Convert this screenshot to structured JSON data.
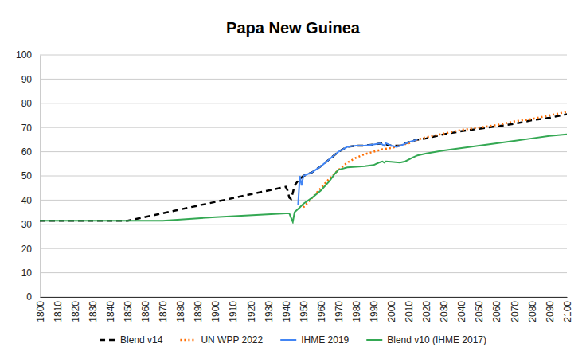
{
  "chart_data": {
    "type": "line",
    "title": "Papa New Guinea",
    "xlim": [
      1800,
      2100
    ],
    "xticks": [
      1800,
      1810,
      1820,
      1830,
      1840,
      1850,
      1860,
      1870,
      1880,
      1890,
      1900,
      1910,
      1920,
      1930,
      1940,
      1950,
      1960,
      1970,
      1980,
      1990,
      2000,
      2010,
      2020,
      2030,
      2040,
      2050,
      2060,
      2070,
      2080,
      2090,
      2100
    ],
    "ylim": [
      0,
      100
    ],
    "yticks": [
      0,
      10,
      20,
      30,
      40,
      50,
      60,
      70,
      80,
      90,
      100
    ],
    "grid": true,
    "legend": "bottom",
    "series": [
      {
        "name": "Blend v14",
        "color": "#000000",
        "line_style": "dashed",
        "x": [
          1800,
          1850,
          1940,
          1941,
          1942,
          1943,
          1944,
          1945,
          1947,
          1950,
          1955,
          1960,
          1965,
          1970,
          1975,
          1980,
          1985,
          1990,
          1995,
          2000,
          2005,
          2010,
          2015,
          2020,
          2030,
          2040,
          2050,
          2060,
          2070,
          2080,
          2090,
          2100
        ],
        "values": [
          31.5,
          31.5,
          45.5,
          44,
          41,
          40.5,
          43,
          46,
          48,
          50,
          51.5,
          54,
          57,
          60,
          62,
          62.5,
          62.5,
          63,
          63.5,
          62.5,
          62.5,
          64,
          65,
          65.5,
          67.2,
          68.5,
          69.5,
          70.5,
          71.5,
          73,
          74,
          75.5
        ]
      },
      {
        "name": "UN WPP 2022",
        "color": "#ff6d01",
        "line_style": "dotted",
        "x": [
          1950,
          1955,
          1960,
          1965,
          1970,
          1975,
          1980,
          1985,
          1990,
          1995,
          2000,
          2005,
          2010,
          2015,
          2020,
          2030,
          2040,
          2050,
          2060,
          2070,
          2080,
          2090,
          2100
        ],
        "values": [
          37,
          41,
          45,
          49,
          52.5,
          55.5,
          57.5,
          59,
          60,
          61,
          61.5,
          62.5,
          63.5,
          65,
          66,
          67.5,
          69,
          70,
          71,
          72.5,
          73.5,
          75,
          76.5
        ]
      },
      {
        "name": "IHME 2019",
        "color": "#4285f4",
        "line_style": "solid",
        "x": [
          1947,
          1948,
          1949,
          1950,
          1955,
          1960,
          1965,
          1970,
          1975,
          1980,
          1985,
          1990,
          1994,
          1996,
          1997,
          2000,
          2003,
          2007,
          2010,
          2015
        ],
        "values": [
          38,
          50,
          46,
          50,
          51.5,
          54,
          57,
          60,
          62,
          62.5,
          62.5,
          63,
          63.5,
          62.5,
          63.5,
          62.5,
          62,
          63,
          64,
          65
        ]
      },
      {
        "name": "Blend v10 (IHME 2017)",
        "color": "#34a853",
        "line_style": "solid",
        "x": [
          1800,
          1870,
          1900,
          1940,
          1942,
          1944,
          1945,
          1948,
          1950,
          1955,
          1960,
          1965,
          1968,
          1970,
          1975,
          1980,
          1985,
          1990,
          1993,
          1995,
          1996,
          1997,
          2000,
          2005,
          2008,
          2012,
          2015,
          2020,
          2030,
          2040,
          2050,
          2060,
          2070,
          2080,
          2090,
          2100
        ],
        "values": [
          31.5,
          31.5,
          33,
          34.5,
          34.5,
          31,
          35,
          37,
          38.5,
          41,
          44,
          48,
          51,
          52.5,
          53.5,
          53.8,
          54,
          54.5,
          55.5,
          56,
          55.5,
          56,
          55.8,
          55.5,
          56,
          57.5,
          58.5,
          59.3,
          60.5,
          61.5,
          62.5,
          63.5,
          64.5,
          65.5,
          66.5,
          67.2
        ]
      }
    ]
  }
}
